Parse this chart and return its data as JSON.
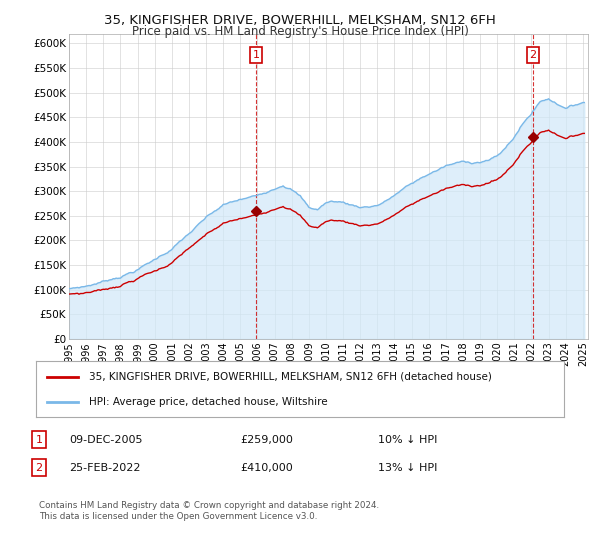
{
  "title": "35, KINGFISHER DRIVE, BOWERHILL, MELKSHAM, SN12 6FH",
  "subtitle": "Price paid vs. HM Land Registry's House Price Index (HPI)",
  "legend_line1": "35, KINGFISHER DRIVE, BOWERHILL, MELKSHAM, SN12 6FH (detached house)",
  "legend_line2": "HPI: Average price, detached house, Wiltshire",
  "annotation1_date": "09-DEC-2005",
  "annotation1_price": "£259,000",
  "annotation1_hpi": "10% ↓ HPI",
  "annotation2_date": "25-FEB-2022",
  "annotation2_price": "£410,000",
  "annotation2_hpi": "13% ↓ HPI",
  "footnote": "Contains HM Land Registry data © Crown copyright and database right 2024.\nThis data is licensed under the Open Government Licence v3.0.",
  "hpi_color": "#7ab8e8",
  "hpi_fill_color": "#d0e8f8",
  "price_color": "#cc0000",
  "marker_color": "#990000",
  "annotation_color": "#cc0000",
  "ylim": [
    0,
    620000
  ],
  "yticks": [
    0,
    50000,
    100000,
    150000,
    200000,
    250000,
    300000,
    350000,
    400000,
    450000,
    500000,
    550000,
    600000
  ],
  "background_color": "#ffffff",
  "grid_color": "#cccccc",
  "sale1_year": 2005.917,
  "sale1_price": 259000,
  "sale2_year": 2022.083,
  "sale2_price": 410000,
  "hpi_at_sale1": 288000,
  "hpi_at_sale2": 471000
}
